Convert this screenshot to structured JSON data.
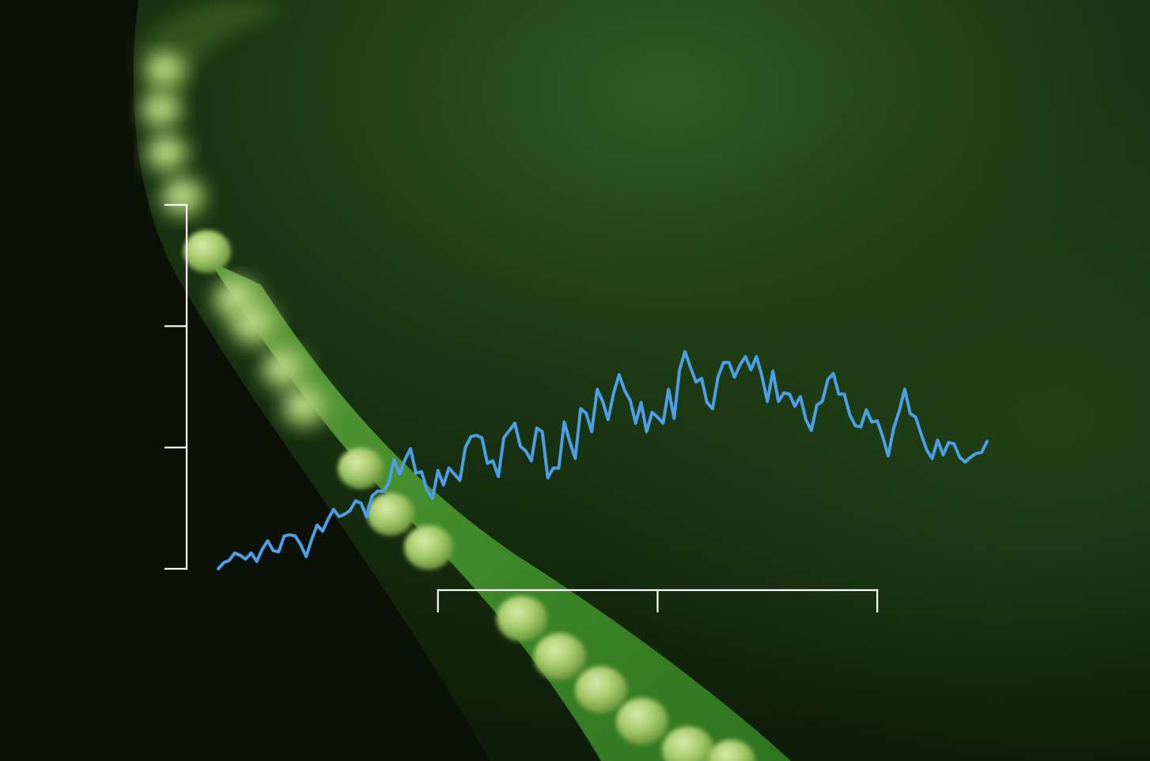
{
  "scene": {
    "subject": "fern-leaf-with-sori",
    "colors": {
      "background_dark": "#0d1308",
      "leaf_green": "#3f8a2a",
      "sori_green": "#a6c96a"
    }
  },
  "chart_data": {
    "type": "line",
    "title": "",
    "xlabel": "",
    "ylabel": "",
    "grid": false,
    "legend": "none",
    "x_range": [
      0,
      140
    ],
    "y_range": [
      0,
      3
    ],
    "x_ticks": [
      40,
      80,
      120
    ],
    "y_ticks": [
      0,
      1,
      2,
      3
    ],
    "tick_labels_shown": false,
    "history": {
      "color": "#ffffff",
      "x_start": 0,
      "x_step": 1,
      "values": [
        0.0,
        0.05,
        0.07,
        0.13,
        0.11,
        0.08,
        0.13,
        0.06,
        0.16,
        0.23,
        0.15,
        0.14,
        0.27,
        0.28,
        0.27,
        0.2,
        0.1,
        0.24,
        0.36,
        0.31,
        0.41,
        0.49,
        0.43,
        0.45,
        0.48,
        0.56,
        0.54,
        0.43,
        0.6,
        0.64,
        0.64,
        0.7,
        0.9,
        0.78,
        0.9,
        0.99,
        0.79,
        0.8,
        0.65,
        0.58,
        0.81,
        0.69,
        0.83,
        0.78,
        0.73,
        1.0,
        1.09,
        1.1,
        1.08,
        0.87,
        0.89,
        0.76,
        1.08,
        1.14,
        1.2,
        1.01,
        0.97,
        0.89,
        1.16,
        1.13,
        0.75,
        0.83,
        0.83,
        1.21,
        1.05,
        0.91,
        1.32,
        1.28,
        1.13,
        1.48,
        1.38,
        1.23,
        1.45,
        1.6,
        1.47,
        1.39,
        1.2,
        1.37,
        1.13,
        1.29,
        1.25,
        1.2,
        1.48,
        1.24,
        1.64,
        1.79,
        1.66,
        1.54,
        1.57,
        1.37,
        1.32,
        1.58,
        1.7,
        1.7,
        1.58,
        1.68,
        1.75,
        1.64,
        1.75,
        1.59,
        1.38,
        1.63,
        1.38,
        1.45,
        1.44,
        1.34,
        1.42,
        1.23,
        1.14,
        1.35,
        1.38,
        1.56,
        1.61,
        1.44,
        1.44,
        1.27,
        1.18,
        1.17,
        1.31,
        1.21,
        1.22,
        1.09,
        0.93,
        1.16,
        1.3,
        1.48,
        1.28,
        1.25,
        1.11,
        0.98,
        0.91,
        1.06,
        0.94,
        1.04,
        1.03,
        0.92,
        0.88,
        0.92,
        0.95,
        0.96,
        1.05
      ]
    },
    "forecast": {
      "color": "#4c9ee6",
      "band_outer_color": "#e2e1ea",
      "band_inner_color": "#b4b6d2",
      "x_start": 0,
      "x_step": 1,
      "mean": [
        0.0,
        0.05,
        0.07,
        0.13,
        0.11,
        0.08,
        0.13,
        0.06,
        0.16,
        0.23,
        0.15,
        0.14,
        0.27,
        0.28,
        0.27,
        0.2,
        0.1,
        0.24,
        0.36,
        0.31,
        0.41,
        0.49,
        0.43,
        0.45,
        0.48,
        0.56,
        0.54,
        0.43,
        0.6,
        0.64,
        0.64,
        0.7,
        0.9,
        0.78,
        0.9,
        0.99,
        0.79,
        0.8,
        0.65,
        0.58,
        0.81,
        0.69,
        0.83,
        0.78,
        0.73,
        1.0,
        1.09,
        1.1,
        1.08,
        0.87,
        0.89,
        0.76,
        1.08,
        1.14,
        1.2,
        1.01,
        0.97,
        0.89,
        1.16,
        1.13,
        0.75,
        0.83,
        0.83,
        1.21,
        1.05,
        0.91,
        1.32,
        1.28,
        1.13,
        1.48,
        1.38,
        1.23,
        1.45,
        1.6,
        1.47,
        1.39,
        1.2,
        1.37,
        1.13,
        1.29,
        1.25,
        1.2,
        1.48,
        1.24,
        1.64,
        1.79,
        1.66,
        1.54,
        1.57,
        1.37,
        1.32,
        1.58,
        1.7,
        1.7,
        1.58,
        1.68,
        1.75,
        1.64,
        1.75,
        1.59,
        1.38,
        1.63,
        1.38,
        1.45,
        1.44,
        1.34,
        1.42,
        1.23,
        1.14,
        1.35,
        1.38,
        1.56,
        1.61,
        1.44,
        1.44,
        1.27,
        1.18,
        1.17,
        1.31,
        1.21,
        1.22,
        1.09,
        0.93,
        1.16,
        1.3,
        1.48,
        1.28,
        1.25,
        1.11,
        0.98,
        0.91,
        1.06,
        0.94,
        1.04,
        1.03,
        0.92,
        0.88,
        0.92,
        0.95,
        0.96,
        1.05
      ],
      "inner_lower": [
        0.0,
        0.05,
        0.07,
        0.13,
        0.11,
        0.08,
        0.13,
        0.06,
        0.16,
        0.23,
        0.15,
        0.14,
        0.27,
        0.28,
        0.27,
        0.2,
        0.1,
        0.24,
        0.36,
        0.31,
        0.41,
        0.49,
        0.43,
        0.45,
        0.48,
        0.56,
        0.54,
        0.43,
        0.6,
        0.64,
        0.64,
        0.7,
        0.9,
        0.78,
        0.9,
        0.99,
        0.79,
        0.8,
        0.65,
        0.58,
        0.81,
        0.69,
        0.83,
        0.78,
        0.73,
        1.0,
        1.09,
        1.1,
        1.08,
        0.87,
        0.89,
        0.76,
        1.08,
        1.14,
        1.2,
        1.01,
        0.97,
        0.89,
        1.16,
        1.13,
        0.75,
        0.83,
        0.83,
        1.21,
        1.05,
        0.91,
        1.32,
        1.28,
        1.13,
        1.48,
        1.38,
        1.23,
        1.45,
        1.6,
        1.47,
        1.39,
        1.2,
        1.37,
        1.13,
        1.29,
        1.25,
        1.2,
        1.48,
        1.24,
        1.64,
        1.79,
        1.66,
        1.54,
        1.57,
        1.37,
        1.32,
        1.58,
        1.7,
        1.7,
        1.58,
        1.68,
        1.75,
        1.64,
        1.75,
        1.59,
        1.38,
        1.63,
        1.38,
        1.45,
        1.44,
        1.34,
        1.42,
        1.23,
        1.14,
        1.35,
        1.38,
        1.56,
        1.61,
        1.44,
        1.44,
        1.27,
        1.18,
        1.17,
        1.31,
        1.21,
        1.22,
        1.09,
        0.93,
        1.16,
        1.3,
        1.48,
        1.28,
        1.25,
        1.11,
        0.98,
        0.91,
        1.06,
        0.94,
        1.04,
        1.03,
        0.92,
        0.88,
        0.92,
        0.95,
        0.96,
        1.05
      ],
      "inner_upper": [
        0.0,
        0.05,
        0.07,
        0.13,
        0.11,
        0.08,
        0.13,
        0.06,
        0.16,
        0.23,
        0.15,
        0.14,
        0.27,
        0.28,
        0.27,
        0.2,
        0.1,
        0.24,
        0.36,
        0.31,
        0.41,
        0.49,
        0.43,
        0.45,
        0.48,
        0.56,
        0.54,
        0.43,
        0.6,
        0.64,
        0.64,
        0.7,
        0.9,
        0.78,
        0.9,
        0.99,
        0.79,
        0.8,
        0.65,
        0.58,
        0.81,
        0.69,
        0.83,
        0.78,
        0.73,
        1.0,
        1.09,
        1.1,
        1.08,
        0.87,
        0.89,
        0.76,
        1.08,
        1.14,
        1.2,
        1.01,
        0.97,
        0.89,
        1.16,
        1.13,
        0.75,
        0.83,
        0.83,
        1.21,
        1.05,
        0.91,
        1.32,
        1.28,
        1.13,
        1.48,
        1.38,
        1.23,
        1.45,
        1.6,
        1.47,
        1.39,
        1.2,
        1.37,
        1.13,
        1.29,
        1.25,
        1.2,
        1.48,
        1.24,
        1.64,
        1.79,
        1.66,
        1.54,
        1.57,
        1.37,
        1.32,
        1.58,
        1.7,
        1.7,
        1.58,
        1.68,
        1.75,
        1.64,
        1.75,
        1.59,
        1.38,
        1.63,
        1.38,
        1.45,
        1.44,
        1.34,
        1.42,
        1.23,
        1.14,
        1.35,
        1.38,
        1.56,
        1.61,
        1.44,
        1.44,
        1.27,
        1.18,
        1.17,
        1.31,
        1.21,
        1.22,
        1.09,
        0.93,
        1.16,
        1.3,
        1.48,
        1.28,
        1.25,
        1.11,
        0.98,
        0.91,
        1.06,
        0.94,
        1.04,
        1.03,
        0.92,
        0.88,
        0.92,
        0.95,
        0.96,
        1.05
      ],
      "outer_lower": [
        0.0,
        0.05,
        0.07,
        0.13,
        0.11,
        0.08,
        0.13,
        0.06,
        0.16,
        0.23,
        0.15,
        0.14,
        0.27,
        0.28,
        0.27,
        0.2,
        0.1,
        0.24,
        0.36,
        0.31,
        0.41,
        0.49,
        0.43,
        0.45,
        0.48,
        0.56,
        0.54,
        0.43,
        0.6,
        0.64,
        0.64,
        0.7,
        0.9,
        0.78,
        0.9,
        0.99,
        0.79,
        0.8,
        0.65,
        0.58,
        0.81,
        0.69,
        0.83,
        0.78,
        0.73,
        1.0,
        1.09,
        1.1,
        1.08,
        0.87,
        0.89,
        0.76,
        1.08,
        1.14,
        1.2,
        1.01,
        0.97,
        0.89,
        1.16,
        1.13,
        0.75,
        0.83,
        0.83,
        1.21,
        1.05,
        0.91,
        1.32,
        1.28,
        1.13,
        1.48,
        1.38,
        1.23,
        1.45,
        1.6,
        1.47,
        1.39,
        1.2,
        1.37,
        1.13,
        1.29,
        1.25,
        1.2,
        1.48,
        1.24,
        1.64,
        1.79,
        1.66,
        1.54,
        1.57,
        1.37,
        1.32,
        1.58,
        1.7,
        1.7,
        1.58,
        1.68,
        1.75,
        1.64,
        1.75,
        1.59,
        1.38,
        1.63,
        1.38,
        1.45,
        1.44,
        1.34,
        1.42,
        1.23,
        1.14,
        1.35,
        1.38,
        1.56,
        1.61,
        1.44,
        1.44,
        1.27,
        1.18,
        1.17,
        1.31,
        1.21,
        1.22,
        1.09,
        0.93,
        1.16,
        1.3,
        1.48,
        1.28,
        1.25,
        1.11,
        0.98,
        0.91,
        1.06,
        0.94,
        1.04,
        1.03,
        0.92,
        0.88,
        0.92,
        0.95,
        0.96,
        1.05
      ],
      "outer_upper": [
        0.0,
        0.05,
        0.07,
        0.13,
        0.11,
        0.08,
        0.13,
        0.06,
        0.16,
        0.23,
        0.15,
        0.14,
        0.27,
        0.28,
        0.27,
        0.2,
        0.1,
        0.24,
        0.36,
        0.31,
        0.41,
        0.49,
        0.43,
        0.45,
        0.48,
        0.56,
        0.54,
        0.43,
        0.6,
        0.64,
        0.64,
        0.7,
        0.9,
        0.78,
        0.9,
        0.99,
        0.79,
        0.8,
        0.65,
        0.58,
        0.81,
        0.69,
        0.83,
        0.78,
        0.73,
        1.0,
        1.09,
        1.1,
        1.08,
        0.87,
        0.89,
        0.76,
        1.08,
        1.14,
        1.2,
        1.01,
        0.97,
        0.89,
        1.16,
        1.13,
        0.75,
        0.83,
        0.83,
        1.21,
        1.05,
        0.91,
        1.32,
        1.28,
        1.13,
        1.48,
        1.38,
        1.23,
        1.45,
        1.6,
        1.47,
        1.39,
        1.2,
        1.37,
        1.13,
        1.29,
        1.25,
        1.2,
        1.48,
        1.24,
        1.64,
        1.79,
        1.66,
        1.54,
        1.57,
        1.37,
        1.32,
        1.58,
        1.7,
        1.7,
        1.58,
        1.68,
        1.75,
        1.64,
        1.75,
        1.59,
        1.38,
        1.63,
        1.38,
        1.45,
        1.44,
        1.34,
        1.42,
        1.23,
        1.14,
        1.35,
        1.38,
        1.56,
        1.61,
        1.44,
        1.44,
        1.27,
        1.18,
        1.17,
        1.31,
        1.21,
        1.22,
        1.09,
        0.93,
        1.16,
        1.3,
        1.48,
        1.28,
        1.25,
        1.11,
        0.98,
        0.91,
        1.06,
        0.94,
        1.04,
        1.03,
        0.92,
        0.88,
        0.92,
        0.95,
        0.96,
        1.05
      ]
    }
  }
}
